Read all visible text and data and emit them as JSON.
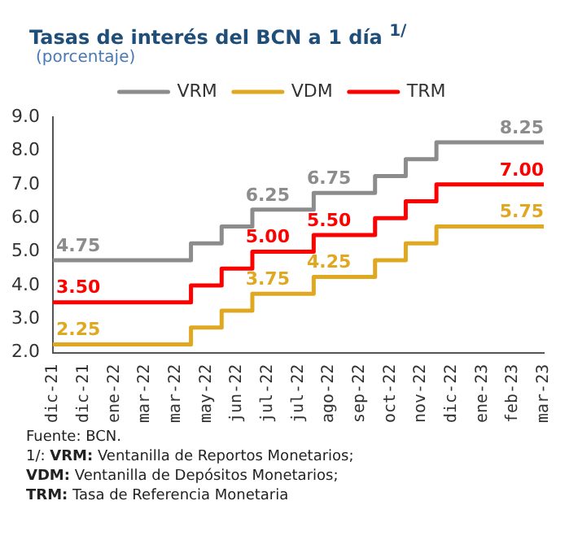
{
  "chart_data": {
    "type": "step",
    "title": "Tasas de interés del BCN a 1 día $^{1/}$",
    "subtitle": "(porcentaje)",
    "categories": [
      "dic-21",
      "dic-21",
      "ene-22",
      "mar-22",
      "mar-22",
      "may-22",
      "jun-22",
      "jul-22",
      "jul-22",
      "ago-22",
      "sep-22",
      "oct-22",
      "nov-22",
      "dic-22",
      "ene-23",
      "feb-23",
      "mar-23"
    ],
    "series": [
      {
        "name": "VRM",
        "color": "#8c8c8c",
        "values": [
          4.75,
          4.75,
          4.75,
          4.75,
          4.75,
          5.25,
          5.75,
          6.25,
          6.25,
          6.75,
          6.75,
          7.25,
          7.75,
          8.25,
          8.25,
          8.25,
          8.25
        ],
        "value_labels": [
          "4.75",
          null,
          null,
          null,
          null,
          null,
          null,
          "6.25",
          null,
          "6.75",
          null,
          null,
          null,
          null,
          null,
          null,
          "8.25"
        ]
      },
      {
        "name": "VDM",
        "color": "#e0a820",
        "values": [
          2.25,
          2.25,
          2.25,
          2.25,
          2.25,
          2.75,
          3.25,
          3.75,
          3.75,
          4.25,
          4.25,
          4.75,
          5.25,
          5.75,
          5.75,
          5.75,
          5.75
        ],
        "value_labels": [
          "2.25",
          null,
          null,
          null,
          null,
          null,
          null,
          "3.75",
          null,
          "4.25",
          null,
          null,
          null,
          null,
          null,
          null,
          "5.75"
        ]
      },
      {
        "name": "TRM",
        "color": "#ff0000",
        "values": [
          3.5,
          3.5,
          3.5,
          3.5,
          3.5,
          4.0,
          4.5,
          5.0,
          5.0,
          5.5,
          5.5,
          6.0,
          6.5,
          7.0,
          7.0,
          7.0,
          7.0
        ],
        "value_labels": [
          "3.50",
          null,
          null,
          null,
          null,
          null,
          null,
          "5.00",
          null,
          "5.50",
          null,
          null,
          null,
          null,
          null,
          null,
          "7.00"
        ]
      }
    ],
    "ylim": [
      2,
      9
    ],
    "yticks": [
      {
        "value": 2,
        "label": "2.0"
      },
      {
        "value": 3,
        "label": "3.0"
      },
      {
        "value": 4,
        "label": "4.0"
      },
      {
        "value": 5,
        "label": "5.0"
      },
      {
        "value": 6,
        "label": "6.0"
      },
      {
        "value": 7,
        "label": "7.0"
      },
      {
        "value": 8,
        "label": "8.0"
      },
      {
        "value": 9,
        "label": "9.0"
      }
    ],
    "grid": false,
    "legend": "top",
    "line_style": "solid",
    "marker": "none",
    "annotations": [
      "Fuente: BCN.",
      "1/: VRM: Ventanilla de Reportos Monetarios;",
      "VDM: Ventanilla de Depósitos Monetarios;",
      "TRM: Tasa de Referencia Monetaria"
    ]
  }
}
